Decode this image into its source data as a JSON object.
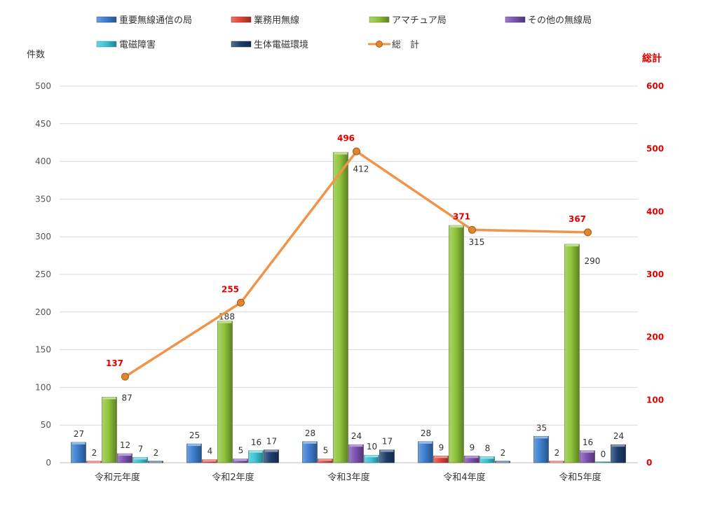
{
  "chart_data": {
    "type": "bar",
    "categories": [
      "令和元年度",
      "令和2年度",
      "令和3年度",
      "令和4年度",
      "令和5年度"
    ],
    "series": [
      {
        "name": "重要無線通信の局",
        "color": "#3d7fcf",
        "values": [
          27,
          25,
          28,
          28,
          35
        ]
      },
      {
        "name": "業務用無線",
        "color": "#e0453a",
        "values": [
          2,
          4,
          5,
          9,
          2
        ]
      },
      {
        "name": "アマチュア局",
        "color": "#8fc43a",
        "values": [
          87,
          188,
          412,
          315,
          290
        ]
      },
      {
        "name": "その他の無線局",
        "color": "#7d52b3",
        "values": [
          12,
          5,
          24,
          9,
          16
        ]
      },
      {
        "name": "電磁障害",
        "color": "#3ec4d6",
        "values": [
          7,
          16,
          10,
          8,
          0
        ]
      },
      {
        "name": "生体電磁環境",
        "color": "#1f3f6e",
        "values": [
          2,
          17,
          17,
          2,
          24
        ]
      }
    ],
    "total": {
      "name": "総　計",
      "color": "#f0944a",
      "values": [
        137,
        255,
        496,
        371,
        367
      ]
    },
    "ylabel": "件数",
    "ylabel_right": "総計",
    "ylim": [
      0,
      500
    ],
    "ylim_right": [
      0,
      600
    ],
    "yticks": [
      "0",
      "50",
      "100",
      "150",
      "200",
      "250",
      "300",
      "350",
      "400",
      "450",
      "500"
    ],
    "yticks_right": [
      "0",
      "100",
      "200",
      "300",
      "400",
      "500",
      "600"
    ],
    "grid": true,
    "legend_position": "top"
  }
}
